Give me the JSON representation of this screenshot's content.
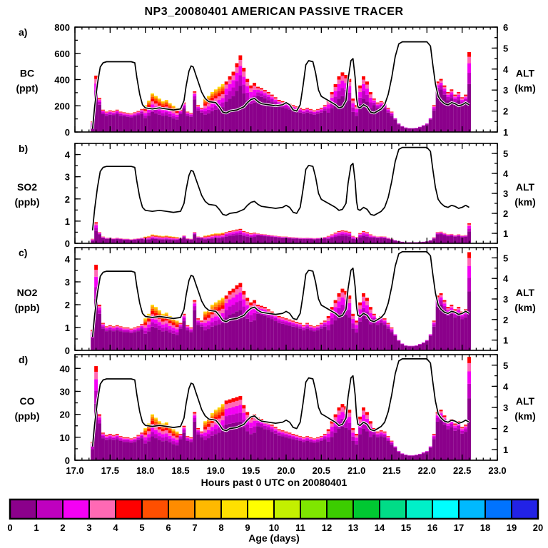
{
  "title": "NP3_20080401 AMERICAN PASSIVE TRACER",
  "x_axis_label": "Hours past 0 UTC on 20080401",
  "alt_axis": {
    "line1": "ALT",
    "line2": "(km)"
  },
  "colorbar": {
    "label": "Age (days)",
    "ticks": [
      0,
      1,
      2,
      3,
      4,
      5,
      6,
      7,
      8,
      9,
      10,
      11,
      12,
      13,
      14,
      15,
      16,
      17,
      18,
      19,
      20
    ],
    "colors": [
      "#8B008B",
      "#BF00BF",
      "#F400F4",
      "#FF69B4",
      "#FF0000",
      "#FF4F00",
      "#FF8C00",
      "#FFB900",
      "#FFE000",
      "#FFFF00",
      "#C3F000",
      "#7FE600",
      "#3CCD00",
      "#00C832",
      "#00DC87",
      "#00F0C8",
      "#00FFFF",
      "#00B9FF",
      "#0073FF",
      "#2222E6"
    ]
  },
  "chart_data": {
    "type": "bar",
    "stacking": "age-bins",
    "x_range": [
      17.0,
      23.0
    ],
    "x_major_ticks": [
      17.0,
      17.5,
      18.0,
      18.5,
      19.0,
      19.5,
      20.0,
      20.5,
      21.0,
      21.5,
      22.0,
      22.5,
      23.0
    ],
    "x_minor_step": 0.1,
    "x": [
      17.25,
      17.3,
      17.35,
      17.4,
      17.45,
      17.5,
      17.55,
      17.6,
      17.65,
      17.7,
      17.75,
      17.8,
      17.85,
      17.9,
      17.95,
      18.0,
      18.05,
      18.1,
      18.15,
      18.2,
      18.25,
      18.3,
      18.35,
      18.4,
      18.45,
      18.5,
      18.55,
      18.6,
      18.65,
      18.7,
      18.75,
      18.8,
      18.85,
      18.9,
      18.95,
      19.0,
      19.05,
      19.1,
      19.15,
      19.2,
      19.25,
      19.3,
      19.35,
      19.4,
      19.45,
      19.5,
      19.55,
      19.6,
      19.65,
      19.7,
      19.75,
      19.8,
      19.85,
      19.9,
      19.95,
      20.0,
      20.05,
      20.1,
      20.15,
      20.2,
      20.25,
      20.3,
      20.35,
      20.4,
      20.45,
      20.5,
      20.55,
      20.6,
      20.65,
      20.7,
      20.75,
      20.8,
      20.85,
      20.9,
      20.95,
      21.0,
      21.05,
      21.1,
      21.15,
      21.2,
      21.25,
      21.3,
      21.35,
      21.4,
      21.45,
      21.5,
      21.55,
      21.6,
      21.65,
      21.7,
      21.75,
      21.8,
      21.85,
      21.9,
      21.95,
      22.0,
      22.05,
      22.1,
      22.15,
      22.2,
      22.25,
      22.3,
      22.35,
      22.4,
      22.45,
      22.5,
      22.55,
      22.6
    ],
    "age_bin_labels": [
      "0-1",
      "1-2",
      "2-3",
      "3-4",
      "4-5",
      "5-6",
      "6-7",
      "7-8",
      "8-9"
    ],
    "age_mixes": [
      [
        0.8,
        0.08,
        0.05,
        0.04,
        0.03,
        0,
        0,
        0,
        0
      ],
      [
        0.6,
        0.14,
        0.12,
        0.08,
        0.06,
        0,
        0,
        0,
        0
      ],
      [
        0.52,
        0.1,
        0.09,
        0.08,
        0.07,
        0.05,
        0.04,
        0.03,
        0.02
      ],
      [
        0.9,
        0.06,
        0.04,
        0,
        0,
        0,
        0,
        0,
        0
      ]
    ],
    "mix_index": [
      1,
      1,
      0,
      0,
      0,
      0,
      0,
      0,
      0,
      0,
      0,
      0,
      0,
      0,
      0,
      2,
      2,
      2,
      2,
      2,
      2,
      2,
      2,
      2,
      2,
      0,
      0,
      0,
      0,
      0,
      0,
      0,
      2,
      2,
      2,
      2,
      2,
      2,
      1,
      1,
      1,
      1,
      1,
      1,
      1,
      1,
      1,
      0,
      0,
      0,
      0,
      0,
      0,
      0,
      0,
      0,
      0,
      0,
      0,
      0,
      0,
      0,
      0,
      0,
      0,
      0,
      0,
      1,
      1,
      1,
      1,
      1,
      1,
      1,
      1,
      1,
      1,
      1,
      1,
      1,
      0,
      0,
      0,
      0,
      0,
      0,
      3,
      3,
      3,
      3,
      3,
      3,
      3,
      3,
      3,
      3,
      3,
      0,
      0,
      0,
      0,
      0,
      0,
      0,
      0,
      0,
      0,
      1
    ],
    "panels": [
      {
        "letter": "a)",
        "species": "BC",
        "unit": "(ppt)",
        "ylim": [
          0,
          800
        ],
        "yticks": [
          0,
          200,
          400,
          600,
          800
        ],
        "y_minor_step": 100,
        "alt_lim": [
          1,
          6
        ],
        "alt_ticks": [
          1,
          2,
          3,
          4,
          5,
          6
        ],
        "alt_minor_step": 0.5,
        "totals": [
          80,
          430,
          260,
          170,
          155,
          165,
          160,
          170,
          155,
          150,
          145,
          140,
          150,
          160,
          175,
          205,
          240,
          295,
          275,
          255,
          235,
          245,
          220,
          200,
          185,
          170,
          225,
          155,
          145,
          310,
          205,
          185,
          255,
          275,
          305,
          325,
          345,
          365,
          385,
          425,
          460,
          525,
          585,
          490,
          405,
          355,
          375,
          345,
          335,
          320,
          305,
          285,
          265,
          245,
          235,
          225,
          215,
          205,
          195,
          185,
          175,
          185,
          175,
          165,
          175,
          185,
          205,
          245,
          305,
          365,
          425,
          455,
          435,
          405,
          255,
          205,
          355,
          425,
          385,
          305,
          255,
          225,
          235,
          225,
          185,
          155,
          105,
          65,
          45,
          35,
          30,
          30,
          32,
          40,
          52,
          65,
          105,
          205,
          385,
          405,
          355,
          305,
          325,
          285,
          305,
          265,
          285,
          610
        ]
      },
      {
        "letter": "b)",
        "species": "SO2",
        "unit": "(ppb)",
        "ylim": [
          0,
          4.5
        ],
        "yticks": [
          0,
          1,
          2,
          3,
          4
        ],
        "y_minor_step": 0.5,
        "alt_lim": [
          0.5,
          5.5
        ],
        "alt_ticks": [
          1,
          2,
          3,
          4,
          5
        ],
        "alt_minor_step": 0.5,
        "totals": [
          0.2,
          0.95,
          0.5,
          0.3,
          0.25,
          0.25,
          0.22,
          0.25,
          0.22,
          0.2,
          0.2,
          0.18,
          0.2,
          0.22,
          0.25,
          0.3,
          0.33,
          0.4,
          0.38,
          0.35,
          0.33,
          0.35,
          0.32,
          0.3,
          0.28,
          0.25,
          0.35,
          0.22,
          0.2,
          0.5,
          0.3,
          0.28,
          0.35,
          0.38,
          0.42,
          0.45,
          0.45,
          0.48,
          0.5,
          0.55,
          0.58,
          0.62,
          0.65,
          0.55,
          0.5,
          0.45,
          0.48,
          0.44,
          0.42,
          0.4,
          0.38,
          0.36,
          0.34,
          0.32,
          0.3,
          0.3,
          0.28,
          0.27,
          0.26,
          0.25,
          0.24,
          0.25,
          0.24,
          0.23,
          0.24,
          0.25,
          0.28,
          0.33,
          0.4,
          0.48,
          0.55,
          0.58,
          0.56,
          0.52,
          0.33,
          0.27,
          0.46,
          0.55,
          0.5,
          0.4,
          0.33,
          0.3,
          0.31,
          0.3,
          0.25,
          0.2,
          0.14,
          0.1,
          0.07,
          0.05,
          0.05,
          0.05,
          0.05,
          0.06,
          0.07,
          0.09,
          0.14,
          0.27,
          0.5,
          0.52,
          0.46,
          0.4,
          0.42,
          0.37,
          0.4,
          0.35,
          0.37,
          0.9
        ]
      },
      {
        "letter": "c)",
        "species": "NO2",
        "unit": "(ppb)",
        "ylim": [
          0,
          4.5
        ],
        "yticks": [
          0,
          1,
          2,
          3,
          4
        ],
        "y_minor_step": 0.5,
        "alt_lim": [
          0.5,
          5.5
        ],
        "alt_ticks": [
          1,
          2,
          3,
          4,
          5
        ],
        "alt_minor_step": 0.5,
        "totals": [
          0.9,
          3.75,
          2.0,
          1.2,
          1.05,
          1.1,
          1.05,
          1.1,
          1.05,
          1.0,
          1.0,
          0.95,
          1.0,
          1.05,
          1.15,
          1.4,
          1.6,
          2.0,
          1.9,
          1.75,
          1.6,
          1.65,
          1.5,
          1.4,
          1.3,
          1.2,
          1.6,
          1.1,
          1.0,
          2.2,
          1.4,
          1.3,
          1.7,
          1.8,
          2.0,
          2.1,
          2.2,
          2.3,
          2.4,
          2.6,
          2.7,
          2.85,
          2.95,
          2.6,
          2.3,
          2.1,
          2.2,
          2.0,
          1.95,
          1.9,
          1.8,
          1.7,
          1.6,
          1.5,
          1.45,
          1.4,
          1.35,
          1.3,
          1.25,
          1.2,
          1.1,
          1.2,
          1.1,
          1.05,
          1.1,
          1.2,
          1.3,
          1.5,
          1.9,
          2.2,
          2.5,
          2.7,
          2.6,
          2.4,
          1.6,
          1.3,
          2.1,
          2.5,
          2.3,
          1.9,
          1.6,
          1.4,
          1.5,
          1.4,
          1.2,
          1.0,
          0.7,
          0.45,
          0.3,
          0.22,
          0.2,
          0.2,
          0.22,
          0.28,
          0.35,
          0.45,
          0.7,
          1.3,
          2.4,
          2.5,
          2.2,
          1.9,
          2.0,
          1.8,
          1.9,
          1.7,
          1.8,
          4.3
        ]
      },
      {
        "letter": "d)",
        "species": "CO",
        "unit": "(ppb)",
        "ylim": [
          0,
          46
        ],
        "yticks": [
          0,
          10,
          20,
          30,
          40
        ],
        "y_minor_step": 5,
        "alt_lim": [
          0.5,
          5.5
        ],
        "alt_ticks": [
          1,
          2,
          3,
          4,
          5
        ],
        "alt_minor_step": 0.5,
        "totals": [
          8,
          41,
          20,
          12,
          11,
          11.5,
          11,
          11.5,
          10.5,
          10,
          10,
          9.5,
          10,
          11,
          12,
          14,
          16,
          20,
          18.5,
          17,
          16,
          16.5,
          15,
          13.5,
          12.5,
          11.5,
          15,
          10.5,
          10,
          21,
          14,
          12.5,
          17,
          18.5,
          20.5,
          22,
          23,
          24.5,
          26,
          26.5,
          27,
          27.5,
          28,
          24,
          21,
          19,
          20,
          18.5,
          18,
          17,
          16.5,
          15.5,
          14.5,
          13.5,
          13,
          12.5,
          12,
          11.5,
          11,
          10.5,
          10,
          10.5,
          10,
          9.5,
          10,
          10.5,
          11.5,
          13.5,
          17,
          20,
          23,
          24.5,
          23.5,
          22,
          14,
          11.5,
          19,
          23,
          21,
          17,
          14,
          12.5,
          13,
          12.5,
          10.5,
          8.5,
          6,
          4,
          3,
          2.5,
          2.2,
          2.2,
          2.4,
          2.8,
          3.4,
          4,
          6,
          11.5,
          21,
          22,
          19.5,
          17,
          18,
          16,
          17,
          14.5,
          15.5,
          45
        ]
      }
    ],
    "altitude": {
      "x": [
        17.25,
        17.28,
        17.32,
        17.36,
        17.4,
        17.45,
        17.8,
        17.85,
        17.88,
        17.92,
        17.96,
        18.0,
        18.1,
        18.2,
        18.3,
        18.4,
        18.5,
        18.55,
        18.58,
        18.62,
        18.65,
        18.68,
        18.72,
        18.76,
        18.8,
        18.85,
        18.9,
        19.0,
        19.05,
        19.1,
        19.15,
        19.2,
        19.3,
        19.4,
        19.45,
        19.5,
        19.55,
        19.6,
        19.65,
        19.75,
        19.85,
        19.95,
        20.0,
        20.05,
        20.1,
        20.15,
        20.2,
        20.24,
        20.28,
        20.32,
        20.38,
        20.42,
        20.46,
        20.5,
        20.55,
        20.6,
        20.65,
        20.7,
        20.75,
        20.8,
        20.85,
        20.88,
        20.92,
        20.95,
        20.98,
        21.0,
        21.02,
        21.05,
        21.1,
        21.15,
        21.2,
        21.25,
        21.3,
        21.35,
        21.4,
        21.45,
        21.5,
        21.55,
        21.6,
        21.65,
        22.0,
        22.05,
        22.08,
        22.12,
        22.16,
        22.2,
        22.25,
        22.3,
        22.35,
        22.4,
        22.45,
        22.5,
        22.55,
        22.6
      ],
      "km": [
        1.15,
        2.2,
        3.3,
        4.1,
        4.3,
        4.35,
        4.35,
        4.3,
        3.6,
        2.8,
        2.3,
        2.15,
        2.1,
        2.15,
        2.1,
        2.05,
        2.1,
        2.5,
        3.2,
        3.9,
        4.15,
        4.1,
        3.7,
        3.3,
        2.9,
        2.6,
        2.45,
        2.4,
        2.2,
        1.95,
        1.9,
        2.0,
        2.05,
        2.2,
        2.4,
        2.55,
        2.6,
        2.45,
        2.35,
        2.3,
        2.25,
        2.3,
        2.4,
        2.3,
        2.05,
        2.0,
        2.3,
        3.2,
        4.2,
        4.4,
        4.35,
        3.8,
        3.0,
        2.7,
        2.6,
        2.5,
        2.4,
        2.3,
        2.15,
        2.2,
        2.5,
        3.5,
        4.4,
        4.5,
        3.6,
        2.6,
        2.2,
        2.15,
        2.3,
        2.2,
        1.95,
        1.9,
        2.0,
        2.1,
        2.3,
        2.8,
        3.6,
        4.6,
        5.2,
        5.3,
        5.3,
        5.1,
        4.3,
        3.3,
        2.7,
        2.5,
        2.35,
        2.3,
        2.4,
        2.35,
        2.25,
        2.3,
        2.4,
        2.3
      ]
    }
  }
}
